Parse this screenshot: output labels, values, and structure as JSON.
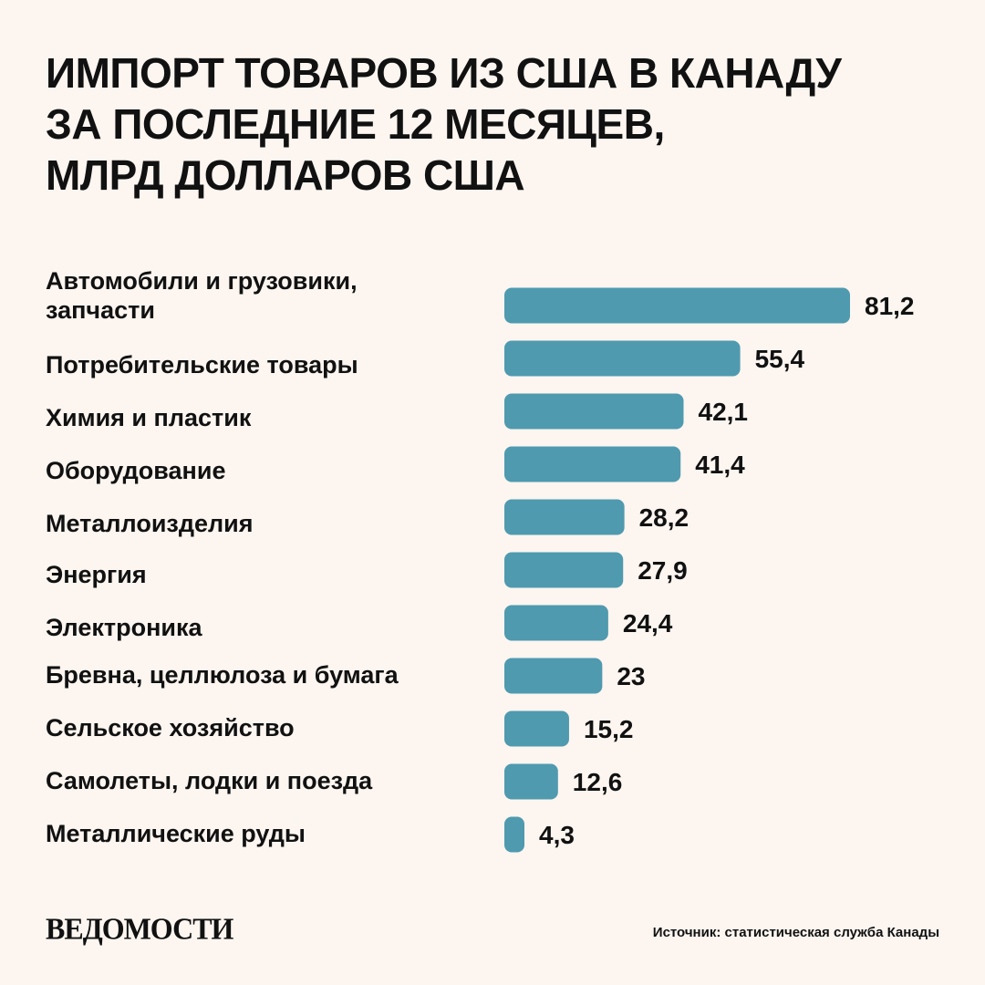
{
  "chart_data": {
    "type": "bar",
    "orientation": "horizontal",
    "title_lines": [
      "ИМПОРТ ТОВАРОВ ИЗ США В КАНАДУ",
      "ЗА ПОСЛЕДНИЕ 12 МЕСЯЦЕВ,",
      "МЛРД ДОЛЛАРОВ США"
    ],
    "categories": [
      [
        "Автомобили и грузовики,",
        "запчасти"
      ],
      [
        "Потребительские товары"
      ],
      [
        "Химия и пластик"
      ],
      [
        "Оборудование"
      ],
      [
        "Металлоизделия"
      ],
      [
        "Энергия"
      ],
      [
        "Электроника"
      ],
      [
        "Бревна, целлюлоза и бумага"
      ],
      [
        "Сельское хозяйство"
      ],
      [
        "Самолеты, лодки и поезда"
      ],
      [
        "Металлические руды"
      ]
    ],
    "values": [
      81.2,
      55.4,
      42.1,
      41.4,
      28.2,
      27.9,
      24.4,
      23,
      15.2,
      12.6,
      4.3
    ],
    "value_labels": [
      "81,2",
      "55,4",
      "42,1",
      "41,4",
      "28,2",
      "27,9",
      "24,4",
      "23",
      "15,2",
      "12,6",
      "4,3"
    ],
    "bar_color": "#4f9aaf",
    "grid": false,
    "legend": "none"
  },
  "brand": {
    "logo_text": "ВЕДОМОСТИ"
  },
  "footer": {
    "source": "Источник: статистическая служба Канады"
  },
  "colors": {
    "background": "#fcf5f0",
    "text": "#111111",
    "bar": "#4f9aaf"
  }
}
